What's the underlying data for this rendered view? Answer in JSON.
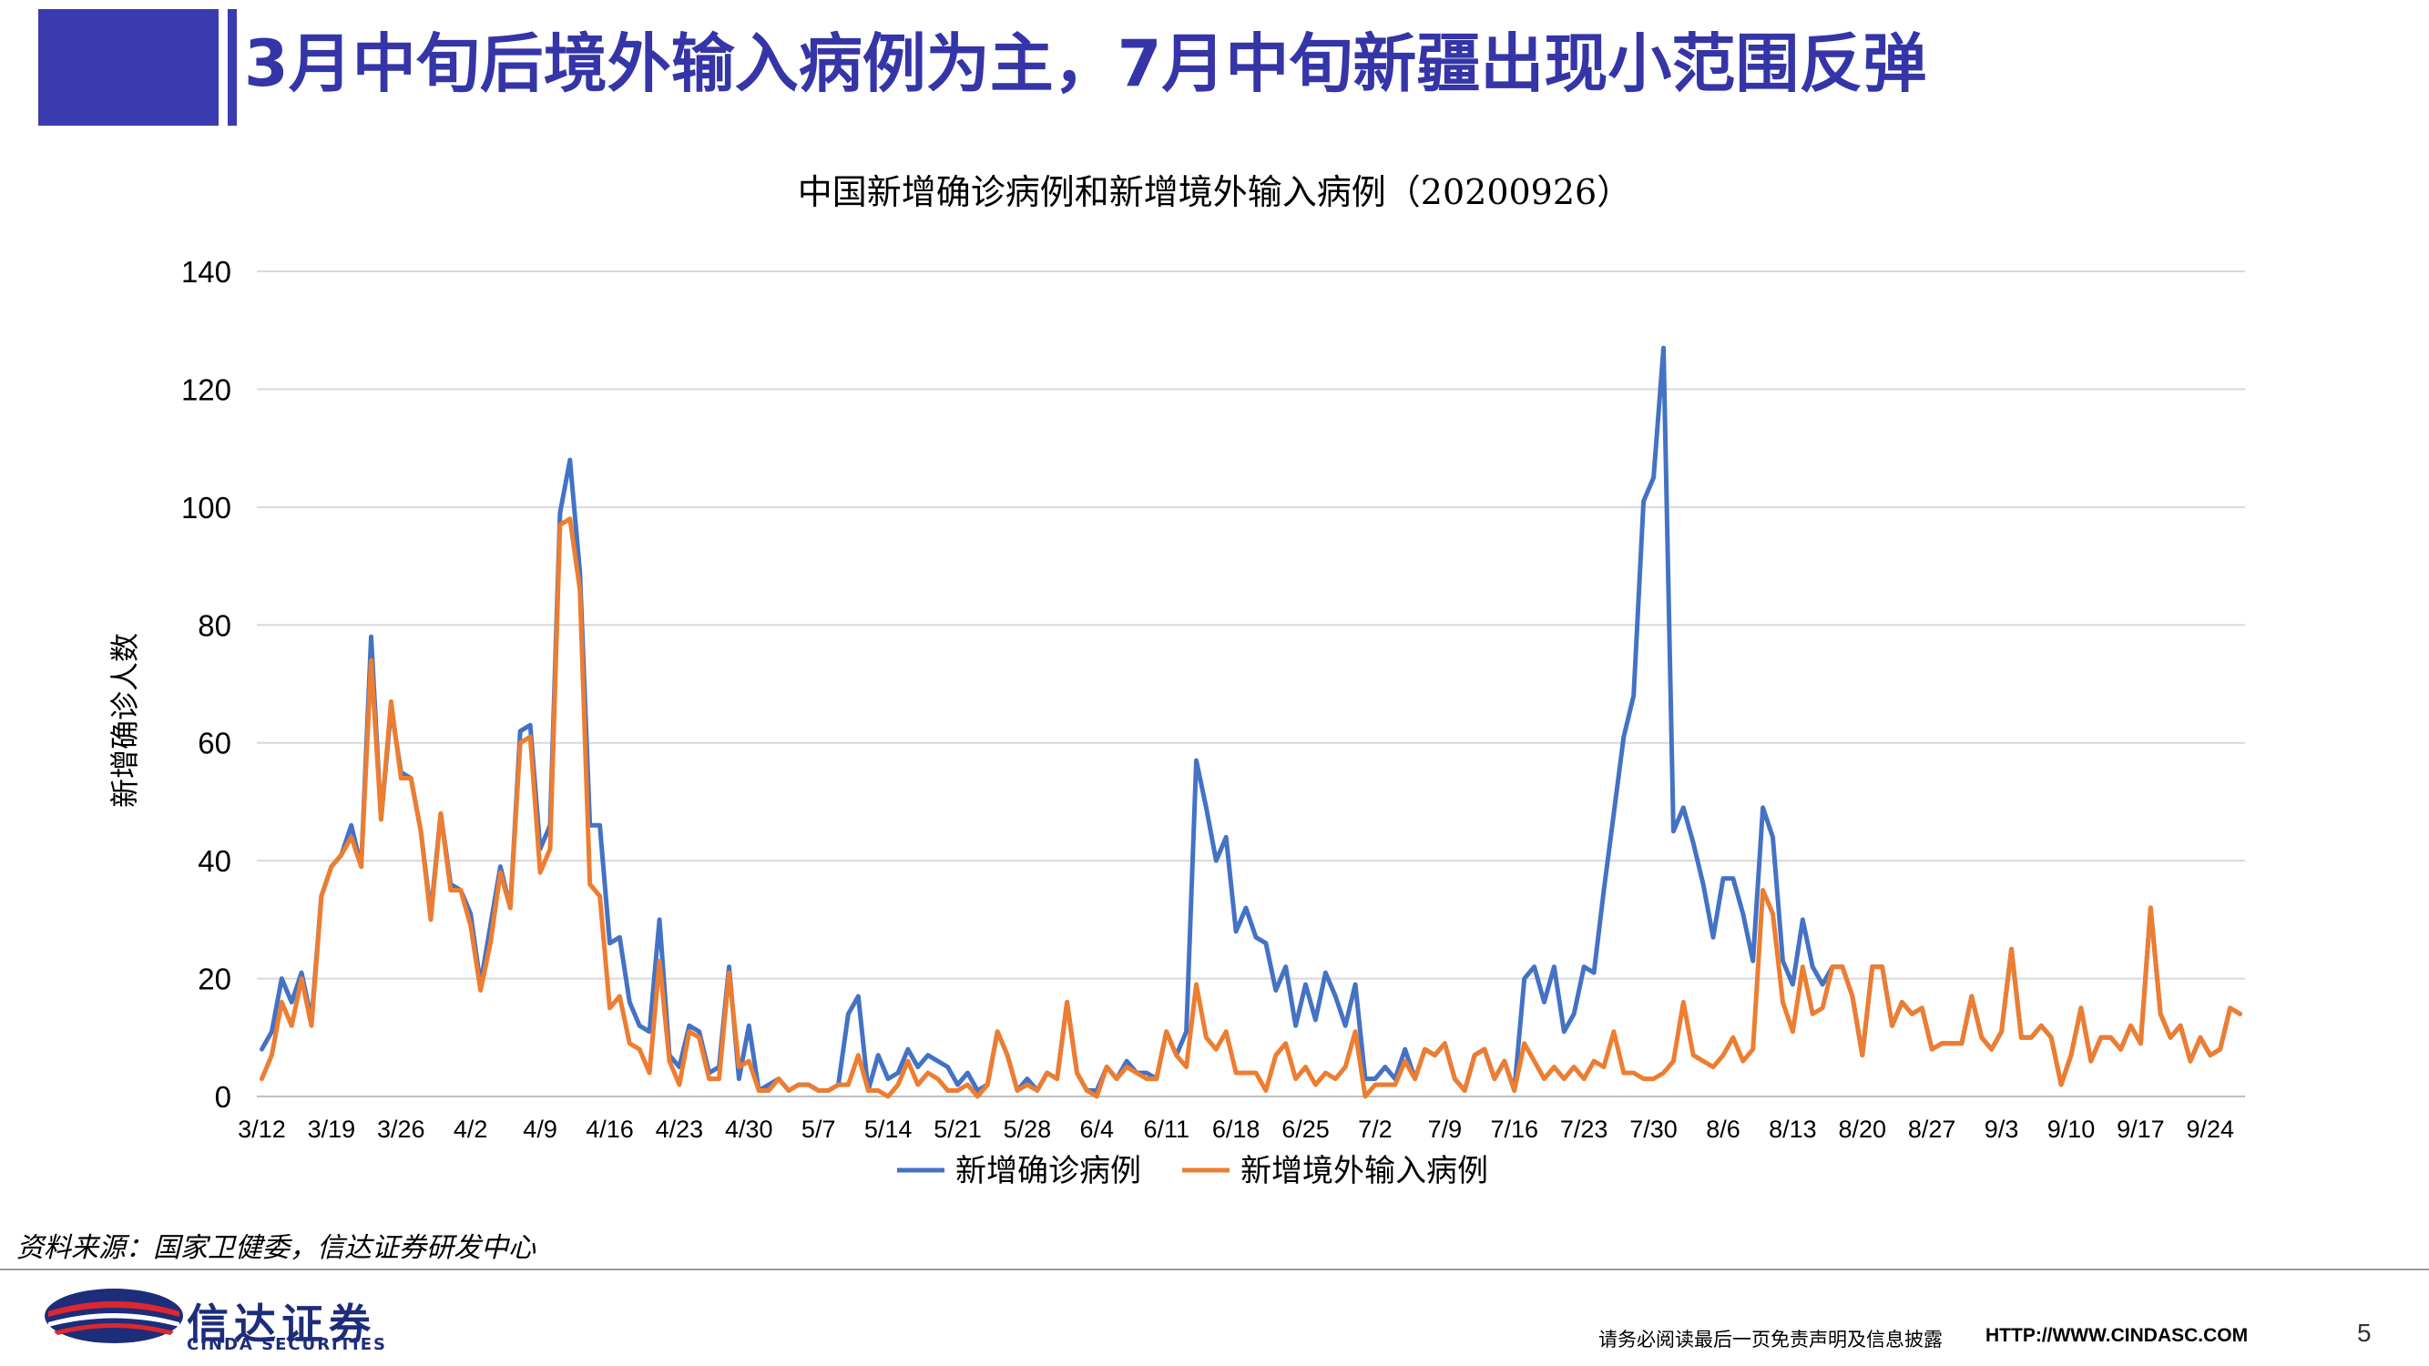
{
  "slide": {
    "title": "3月中旬后境外输入病例为主，7月中旬新疆出现小范围反弹",
    "source": "资料来源：国家卫健委，信达证券研发中心",
    "brand_cn": "信达证券",
    "brand_en": "CINDA SECURITIES",
    "disclaimer": "请务必阅读最后一页免责声明及信息披露",
    "url": "HTTP://WWW.CINDASC.COM",
    "page_number": "5"
  },
  "colors": {
    "accent": "#3b3bb0",
    "series_total": "#4472c4",
    "series_imported": "#ed7d31",
    "grid": "#d9d9d9"
  },
  "chart_data": {
    "type": "line",
    "title": "中国新增确诊病例和新增境外输入病例（20200926）",
    "ylabel": "新增确诊人数",
    "xlabel": "",
    "ylim": [
      0,
      140
    ],
    "yticks": [
      0,
      20,
      40,
      60,
      80,
      100,
      120,
      140
    ],
    "grid": true,
    "legend_position": "bottom",
    "x_start": "3/12",
    "x_end": "9/26",
    "x_ticks": [
      "3/12",
      "3/19",
      "3/26",
      "4/2",
      "4/9",
      "4/16",
      "4/23",
      "4/30",
      "5/7",
      "5/14",
      "5/21",
      "5/28",
      "6/4",
      "6/11",
      "6/18",
      "6/25",
      "7/2",
      "7/9",
      "7/16",
      "7/23",
      "7/30",
      "8/6",
      "8/13",
      "8/20",
      "8/27",
      "9/3",
      "9/10",
      "9/17",
      "9/24"
    ],
    "series": [
      {
        "name": "新增确诊病例",
        "values": [
          8,
          11,
          20,
          16,
          21,
          13,
          34,
          39,
          41,
          46,
          39,
          78,
          47,
          66,
          55,
          54,
          45,
          31,
          48,
          36,
          35,
          31,
          19,
          29,
          39,
          32,
          62,
          63,
          42,
          46,
          99,
          108,
          89,
          46,
          46,
          26,
          27,
          16,
          12,
          11,
          30,
          7,
          5,
          12,
          11,
          4,
          5,
          22,
          3,
          12,
          1,
          2,
          3,
          1,
          2,
          2,
          1,
          1,
          2,
          14,
          17,
          1,
          7,
          3,
          4,
          8,
          5,
          7,
          6,
          5,
          2,
          4,
          1,
          2,
          11,
          7,
          1,
          3,
          1,
          4,
          3,
          16,
          4,
          1,
          1,
          5,
          3,
          6,
          4,
          4,
          3,
          11,
          7,
          11,
          57,
          49,
          40,
          44,
          28,
          32,
          27,
          26,
          18,
          22,
          12,
          19,
          13,
          21,
          17,
          12,
          19,
          3,
          3,
          5,
          3,
          8,
          3,
          8,
          7,
          9,
          3,
          1,
          7,
          8,
          3,
          6,
          1,
          20,
          22,
          16,
          22,
          11,
          14,
          22,
          21,
          35,
          48,
          61,
          68,
          101,
          105,
          127,
          45,
          49,
          43,
          36,
          27,
          37,
          37,
          31,
          23,
          49,
          44,
          23,
          19,
          30,
          22,
          19,
          22,
          22,
          17,
          7,
          22,
          22,
          12,
          16,
          14,
          15,
          8,
          9,
          9,
          9,
          17,
          10,
          8,
          11,
          25,
          10,
          10,
          12,
          10,
          2,
          7,
          15,
          6,
          10,
          10,
          8,
          12,
          9,
          32,
          14,
          10,
          12,
          6,
          10,
          7,
          8,
          15,
          14
        ]
      },
      {
        "name": "新增境外输入病例",
        "values": [
          3,
          7,
          16,
          12,
          20,
          12,
          34,
          39,
          41,
          44,
          39,
          74,
          47,
          67,
          54,
          54,
          45,
          30,
          48,
          35,
          35,
          29,
          18,
          26,
          38,
          32,
          60,
          61,
          38,
          42,
          97,
          98,
          86,
          36,
          34,
          15,
          17,
          9,
          8,
          4,
          23,
          6,
          2,
          11,
          10,
          3,
          3,
          21,
          5,
          6,
          1,
          1,
          3,
          1,
          2,
          2,
          1,
          1,
          2,
          2,
          7,
          1,
          1,
          0,
          2,
          6,
          2,
          4,
          3,
          1,
          1,
          2,
          0,
          2,
          11,
          7,
          1,
          2,
          1,
          4,
          3,
          16,
          4,
          1,
          0,
          5,
          3,
          5,
          4,
          3,
          3,
          11,
          7,
          5,
          19,
          10,
          8,
          11,
          4,
          4,
          4,
          1,
          7,
          9,
          3,
          5,
          2,
          4,
          3,
          5,
          11,
          0,
          2,
          2,
          2,
          6,
          3,
          8,
          7,
          9,
          3,
          1,
          7,
          8,
          3,
          6,
          1,
          9,
          6,
          3,
          5,
          3,
          5,
          3,
          6,
          5,
          11,
          4,
          4,
          3,
          3,
          4,
          6,
          16,
          7,
          6,
          5,
          7,
          10,
          6,
          8,
          35,
          31,
          16,
          11,
          22,
          14,
          15,
          22,
          22,
          17,
          7,
          22,
          22,
          12,
          16,
          14,
          15,
          8,
          9,
          9,
          9,
          17,
          10,
          8,
          11,
          25,
          10,
          10,
          12,
          10,
          2,
          7,
          15,
          6,
          10,
          10,
          8,
          12,
          9,
          32,
          14,
          10,
          12,
          6,
          10,
          7,
          8,
          15,
          14
        ]
      }
    ]
  }
}
